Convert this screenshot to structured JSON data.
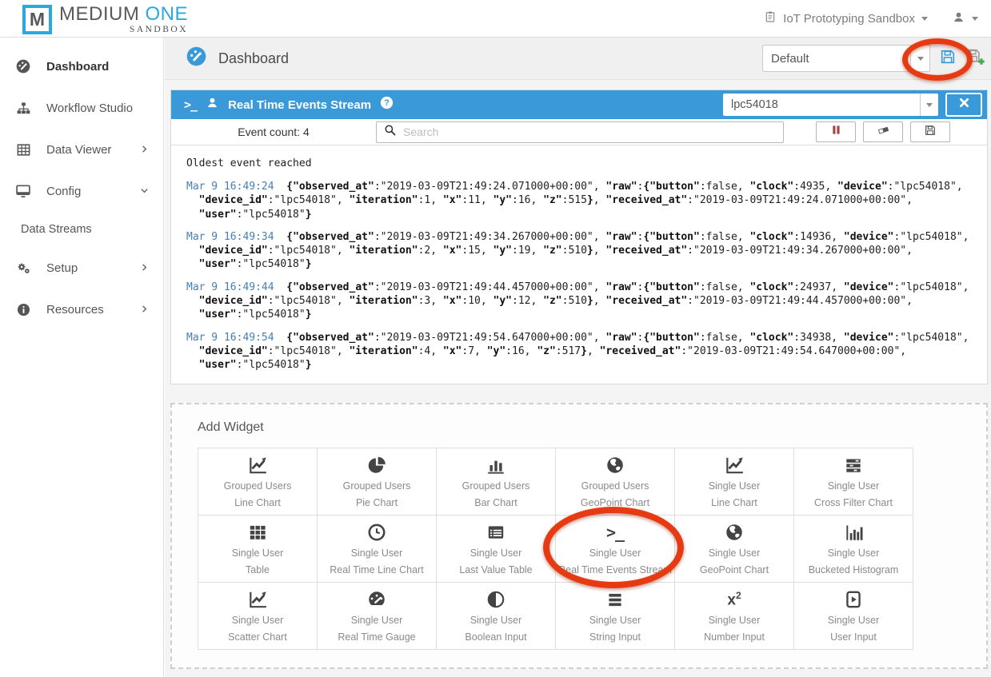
{
  "header": {
    "logo": {
      "m": "M",
      "medium": "MEDIUM",
      "one": "ONE",
      "sandbox": "SANDBOX"
    },
    "workspace": "IoT Prototyping Sandbox",
    "icons": [
      "clipboard-icon",
      "user-icon",
      "caret-down-icon"
    ]
  },
  "sidebar": {
    "items": [
      {
        "label": "Dashboard",
        "icon": "gauge-icon",
        "active": true
      },
      {
        "label": "Workflow Studio",
        "icon": "sitemap-icon"
      },
      {
        "label": "Data Viewer",
        "icon": "table-icon",
        "chevron": "right"
      },
      {
        "label": "Config",
        "icon": "monitor-icon",
        "chevron": "down"
      },
      {
        "label": "Data Streams",
        "sub": true
      },
      {
        "label": "Setup",
        "icon": "gears-icon",
        "chevron": "right"
      },
      {
        "label": "Resources",
        "icon": "info-icon",
        "chevron": "right"
      }
    ]
  },
  "page": {
    "title": "Dashboard",
    "icon": "gauge-icon",
    "dashboard_select": "Default",
    "toolbar_icons": [
      "caret-down-icon",
      "save-icon",
      "save-add-icon"
    ]
  },
  "widget": {
    "title": "Real Time Events Stream",
    "header_icons": [
      "terminal-icon",
      "user-icon",
      "help-icon"
    ],
    "device_select": "lpc54018",
    "close_icon": "close-icon",
    "event_count_label": "Event count:",
    "event_count": "4",
    "search_placeholder": "Search",
    "toolbar_buttons": [
      {
        "icon": "pause-icon"
      },
      {
        "icon": "eraser-icon"
      },
      {
        "icon": "save-icon"
      }
    ],
    "log_status": "Oldest event reached",
    "events": [
      {
        "time": "Mar 9 16:49:24",
        "json": "{\"observed_at\":\"2019-03-09T21:49:24.071000+00:00\", \"raw\":{\"button\":false, \"clock\":4935, \"device\":\"lpc54018\", \"device_id\":\"lpc54018\", \"iteration\":1, \"x\":11, \"y\":16, \"z\":515}, \"received_at\":\"2019-03-09T21:49:24.071000+00:00\", \"user\":\"lpc54018\"}"
      },
      {
        "time": "Mar 9 16:49:34",
        "json": "{\"observed_at\":\"2019-03-09T21:49:34.267000+00:00\", \"raw\":{\"button\":false, \"clock\":14936, \"device\":\"lpc54018\", \"device_id\":\"lpc54018\", \"iteration\":2, \"x\":15, \"y\":19, \"z\":510}, \"received_at\":\"2019-03-09T21:49:34.267000+00:00\", \"user\":\"lpc54018\"}"
      },
      {
        "time": "Mar 9 16:49:44",
        "json": "{\"observed_at\":\"2019-03-09T21:49:44.457000+00:00\", \"raw\":{\"button\":false, \"clock\":24937, \"device\":\"lpc54018\", \"device_id\":\"lpc54018\", \"iteration\":3, \"x\":10, \"y\":12, \"z\":510}, \"received_at\":\"2019-03-09T21:49:44.457000+00:00\", \"user\":\"lpc54018\"}"
      },
      {
        "time": "Mar 9 16:49:54",
        "json": "{\"observed_at\":\"2019-03-09T21:49:54.647000+00:00\", \"raw\":{\"button\":false, \"clock\":34938, \"device\":\"lpc54018\", \"device_id\":\"lpc54018\", \"iteration\":4, \"x\":7, \"y\":16, \"z\":517}, \"received_at\":\"2019-03-09T21:49:54.647000+00:00\", \"user\":\"lpc54018\"}"
      }
    ]
  },
  "add_widget": {
    "title": "Add Widget",
    "items": [
      {
        "line1": "Grouped Users",
        "line2": "Line Chart",
        "icon": "line-chart-icon"
      },
      {
        "line1": "Grouped Users",
        "line2": "Pie Chart",
        "icon": "pie-chart-icon"
      },
      {
        "line1": "Grouped Users",
        "line2": "Bar Chart",
        "icon": "bar-chart-icon"
      },
      {
        "line1": "Grouped Users",
        "line2": "GeoPoint Chart",
        "icon": "globe-icon"
      },
      {
        "line1": "Single User",
        "line2": "Line Chart",
        "icon": "line-chart-icon"
      },
      {
        "line1": "Single User",
        "line2": "Cross Filter Chart",
        "icon": "cross-filter-icon"
      },
      {
        "line1": "Single User",
        "line2": "Table",
        "icon": "table-icon"
      },
      {
        "line1": "Single User",
        "line2": "Real Time Line Chart",
        "icon": "clock-icon"
      },
      {
        "line1": "Single User",
        "line2": "Last Value Table",
        "icon": "list-table-icon"
      },
      {
        "line1": "Single User",
        "line2": "Real Time Events Stream",
        "icon": "terminal-icon"
      },
      {
        "line1": "Single User",
        "line2": "GeoPoint Chart",
        "icon": "globe-icon"
      },
      {
        "line1": "Single User",
        "line2": "Bucketed Histogram",
        "icon": "histogram-icon"
      },
      {
        "line1": "Single User",
        "line2": "Scatter Chart",
        "icon": "line-chart-icon"
      },
      {
        "line1": "Single User",
        "line2": "Real Time Gauge",
        "icon": "gauge-icon"
      },
      {
        "line1": "Single User",
        "line2": "Boolean Input",
        "icon": "boolean-icon"
      },
      {
        "line1": "Single User",
        "line2": "String Input",
        "icon": "string-input-icon"
      },
      {
        "line1": "Single User",
        "line2": "Number Input",
        "icon": "number-input-icon"
      },
      {
        "line1": "Single User",
        "line2": "User Input",
        "icon": "user-input-icon"
      }
    ]
  },
  "annotations": {
    "color": "#e63b12",
    "items": [
      {
        "around": "dashboard-save-controls"
      },
      {
        "around": "tile-single-user-real-time-events-stream"
      }
    ]
  },
  "colors": {
    "accent_blue": "#3a99d8",
    "logo_blue": "#29a9e0",
    "timestamp_blue": "#4580b4",
    "annotation_red": "#e63b12",
    "pause_red": "#a94442",
    "save_add_green": "#3fae49"
  }
}
